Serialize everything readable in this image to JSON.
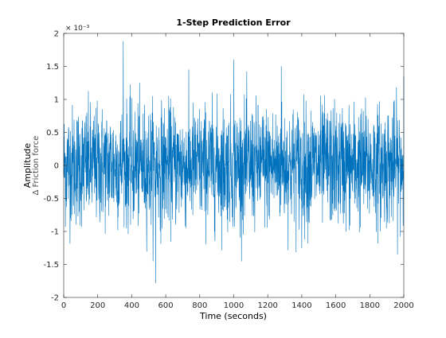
{
  "chart_data": {
    "type": "line",
    "title": "1-Step Prediction Error",
    "xlabel": "Time (seconds)",
    "ylabel": "Amplitude",
    "ylabel_sub": "Δ Friction force",
    "y_exponent_label": "× 10⁻³",
    "xlim": [
      0,
      2000
    ],
    "ylim": [
      -2,
      2
    ],
    "y_scale_factor": 0.001,
    "x_ticks": [
      0,
      200,
      400,
      600,
      800,
      1000,
      1200,
      1400,
      1600,
      1800,
      2000
    ],
    "y_ticks": [
      -2,
      -1.5,
      -1,
      -0.5,
      0,
      0.5,
      1,
      1.5,
      2
    ],
    "y_tick_labels": [
      "-2",
      "-1.5",
      "-1",
      "-0.5",
      "0",
      "0.5",
      "1",
      "1.5",
      "2"
    ],
    "grid": false,
    "line_color": "#0072BD",
    "series": [
      {
        "x_start": 0,
        "x_end": 2000,
        "n_points": 2000,
        "approx_std": 0.45,
        "notable_points": [
          {
            "x": 350,
            "y": 1.88
          },
          {
            "x": 540,
            "y": -1.78
          },
          {
            "x": 1000,
            "y": -1.62
          },
          {
            "x": 1000,
            "y": 1.6
          },
          {
            "x": 1280,
            "y": 1.5
          },
          {
            "x": 1400,
            "y": -1.25
          },
          {
            "x": 2000,
            "y": 1.35
          }
        ]
      }
    ]
  }
}
